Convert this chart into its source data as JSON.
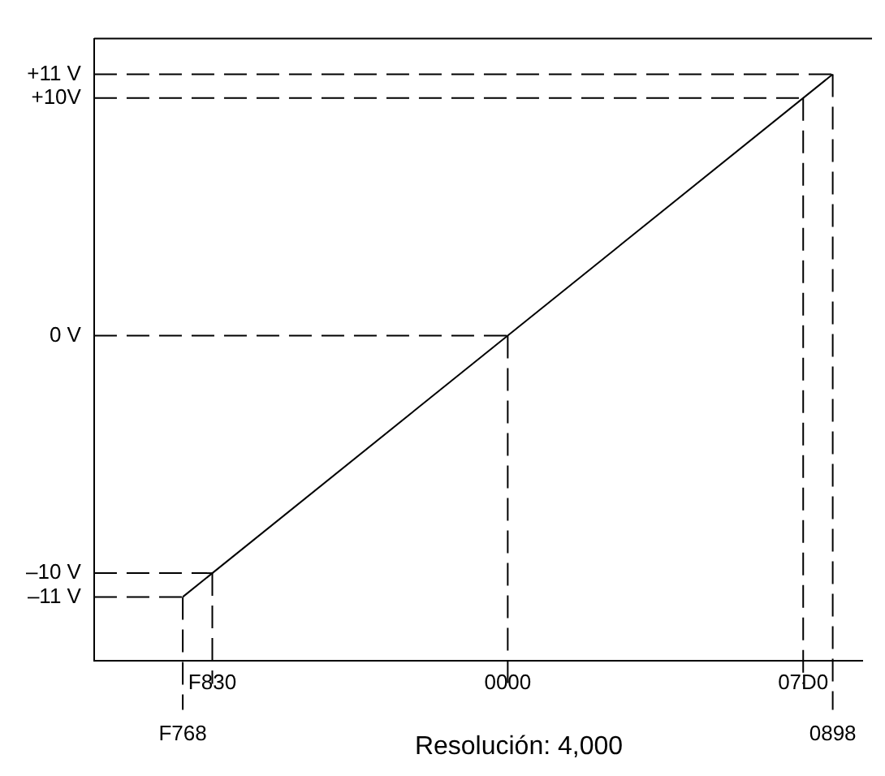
{
  "chart_data": {
    "type": "line",
    "annotations": [
      "Resolución: 4,000"
    ],
    "categories": [
      null,
      null,
      null,
      null,
      null,
      null,
      "F768",
      null,
      "F830",
      null,
      null,
      null,
      null,
      null,
      null,
      null,
      null,
      null,
      null,
      null,
      null,
      null,
      null,
      null,
      null,
      null,
      null,
      null,
      "0000",
      null,
      null,
      null,
      null,
      null,
      null,
      null,
      null,
      null,
      null,
      null,
      null,
      null,
      null,
      null,
      null,
      null,
      null,
      null,
      "07D0",
      null,
      "0898",
      null,
      null
    ],
    "series": [
      {
        "color": "#000000",
        "values": [
          null,
          null,
          null,
          null,
          null,
          null,
          -11,
          null,
          null,
          null,
          null,
          null,
          null,
          null,
          null,
          null,
          null,
          null,
          null,
          null,
          null,
          null,
          null,
          null,
          null,
          null,
          null,
          null,
          null,
          null,
          null,
          null,
          null,
          null,
          null,
          null,
          null,
          null,
          null,
          null,
          null,
          null,
          null,
          null,
          null,
          null,
          null,
          null,
          null,
          null,
          11,
          null,
          null
        ]
      }
    ],
    "ylim": [
      -13.7,
      12.5
    ],
    "yticks": [
      {
        "value": -11,
        "label": "–11 V"
      },
      {
        "value": -10,
        "label": "–10 V"
      },
      {
        "value": 0,
        "label": "0 V"
      },
      {
        "value": 10,
        "label": "+10V"
      },
      {
        "value": 11,
        "label": "+11 V"
      }
    ],
    "ref_lines": [
      {
        "axis": "y",
        "value": 11,
        "line_style": "dashed"
      },
      {
        "axis": "y",
        "value": 10,
        "line_style": "dashed"
      },
      {
        "axis": "y",
        "value": 0,
        "line_style": "dashed"
      },
      {
        "axis": "y",
        "value": -10,
        "line_style": "dashed"
      },
      {
        "axis": "y",
        "value": -11,
        "line_style": "dashed"
      },
      {
        "axis": "x",
        "value": "F768",
        "line_style": "dashed"
      },
      {
        "axis": "x",
        "value": "F830",
        "line_style": "dashed"
      },
      {
        "axis": "x",
        "value": "0000",
        "line_style": "dashed"
      },
      {
        "axis": "x",
        "value": "07D0",
        "line_style": "dashed"
      },
      {
        "axis": "x",
        "value": "0898",
        "line_style": "dashed"
      }
    ],
    "grid": false,
    "legend": false,
    "marker": "none",
    "line_style": "solid"
  }
}
